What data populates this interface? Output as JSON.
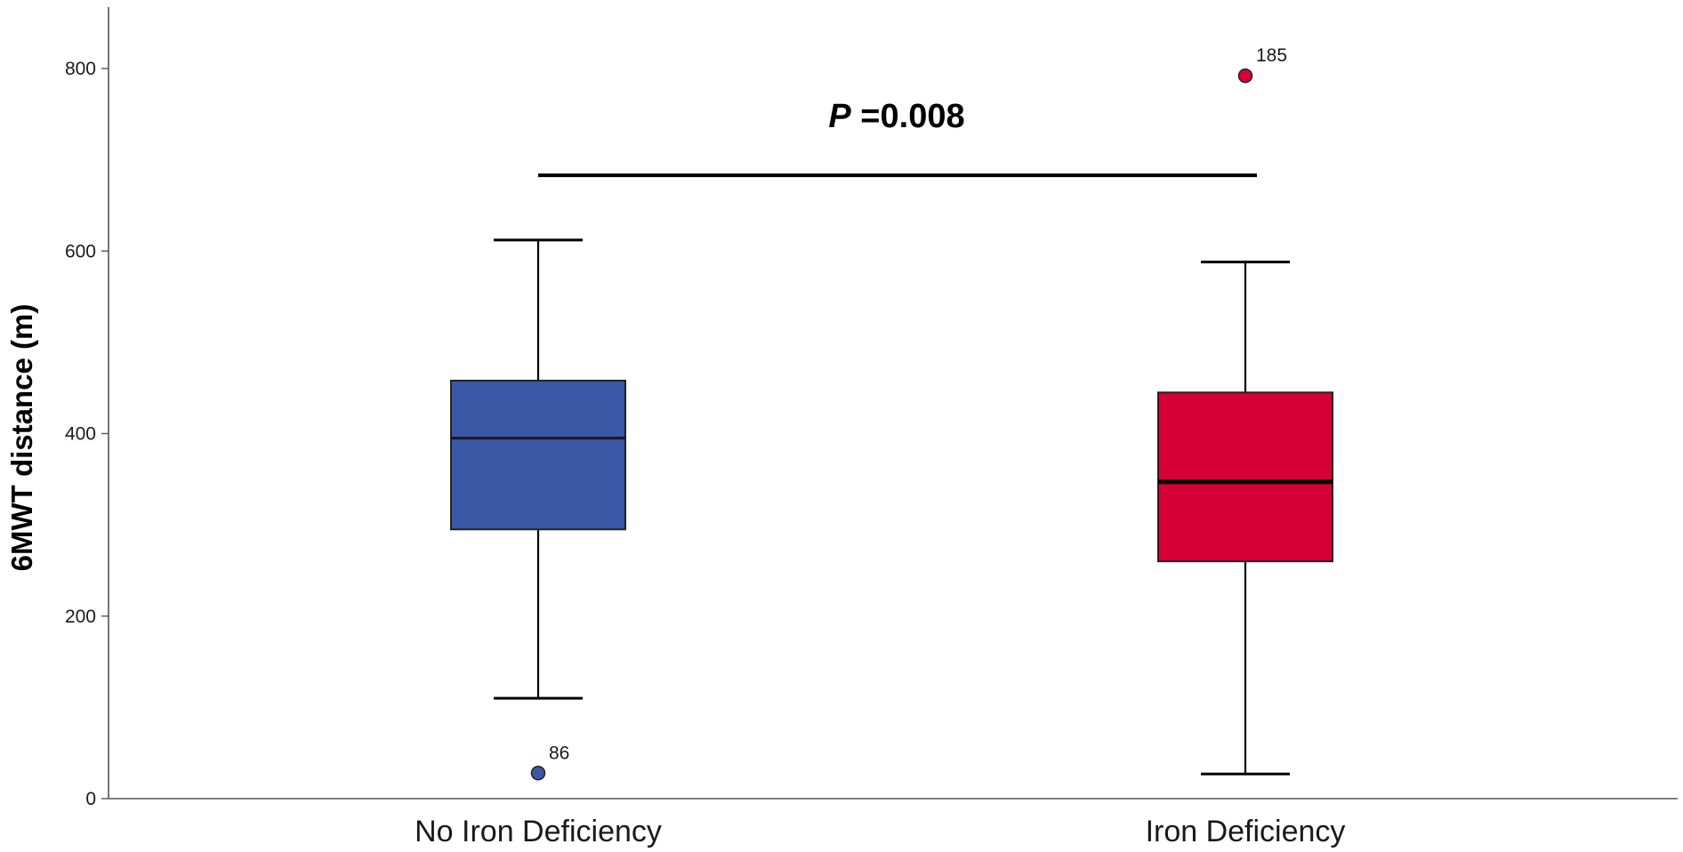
{
  "chart_data": {
    "type": "box",
    "title": "",
    "xlabel": "",
    "ylabel": "6MWT distance (m)",
    "ylim": [
      0,
      870
    ],
    "yticks": [
      0,
      200,
      400,
      600,
      800
    ],
    "grid": false,
    "legend": "none",
    "categories": [
      "No Iron Deficiency",
      "Iron Deficiency"
    ],
    "series": [
      {
        "category": "No Iron Deficiency",
        "color": "#3b58a6",
        "median_color": "#1a1a2e",
        "whisker_low": 110,
        "q1": 295,
        "median": 395,
        "q3": 458,
        "whisker_high": 612,
        "outliers": [
          {
            "value": 28,
            "label": "86"
          }
        ]
      },
      {
        "category": "Iron Deficiency",
        "color": "#d70036",
        "median_color": "#000000",
        "whisker_low": 27,
        "q1": 260,
        "median": 347,
        "q3": 445,
        "whisker_high": 588,
        "outliers": [
          {
            "value": 792,
            "label": "185"
          }
        ]
      }
    ],
    "annotation": {
      "prefix": "P",
      "text": " =0.008",
      "bracket_value": 683
    }
  }
}
